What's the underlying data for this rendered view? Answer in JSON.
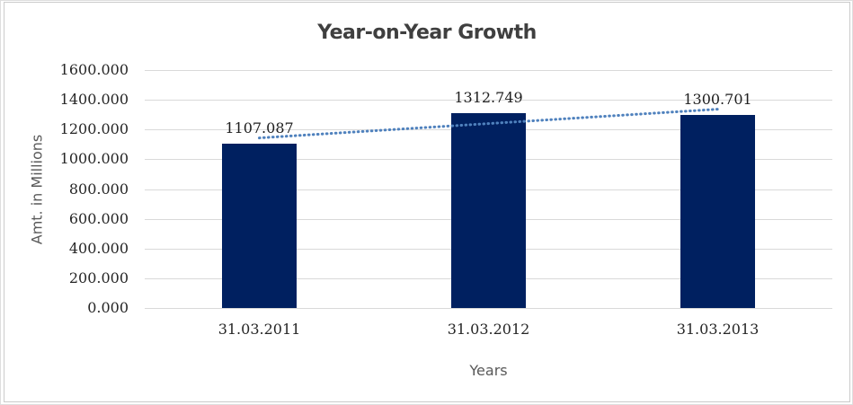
{
  "chart_data": {
    "type": "bar",
    "title": "Year-on-Year Growth",
    "xlabel": "Years",
    "ylabel": "Amt. in Millions",
    "categories": [
      "31.03.2011",
      "31.03.2012",
      "31.03.2013"
    ],
    "values": [
      1107.087,
      1312.749,
      1300.701
    ],
    "data_labels": [
      "1107.087",
      "1312.749",
      "1300.701"
    ],
    "ylim": [
      0,
      1600
    ],
    "ytick_step": 200,
    "ytick_labels": [
      "0.000",
      "200.000",
      "400.000",
      "600.000",
      "800.000",
      "1000.000",
      "1200.000",
      "1400.000",
      "1600.000"
    ],
    "grid": true,
    "legend": "none",
    "trendline": {
      "type": "linear",
      "style": "dotted",
      "color": "#4f81bd"
    },
    "colors": {
      "bar": "#002060",
      "gridline": "#d9d9d9",
      "frame_border": "#cbcbcb",
      "title_text": "#3f3f3f",
      "tick_text": "#262626",
      "data_label_text": "#1f1f1f",
      "axis_title_text": "#595959"
    }
  }
}
